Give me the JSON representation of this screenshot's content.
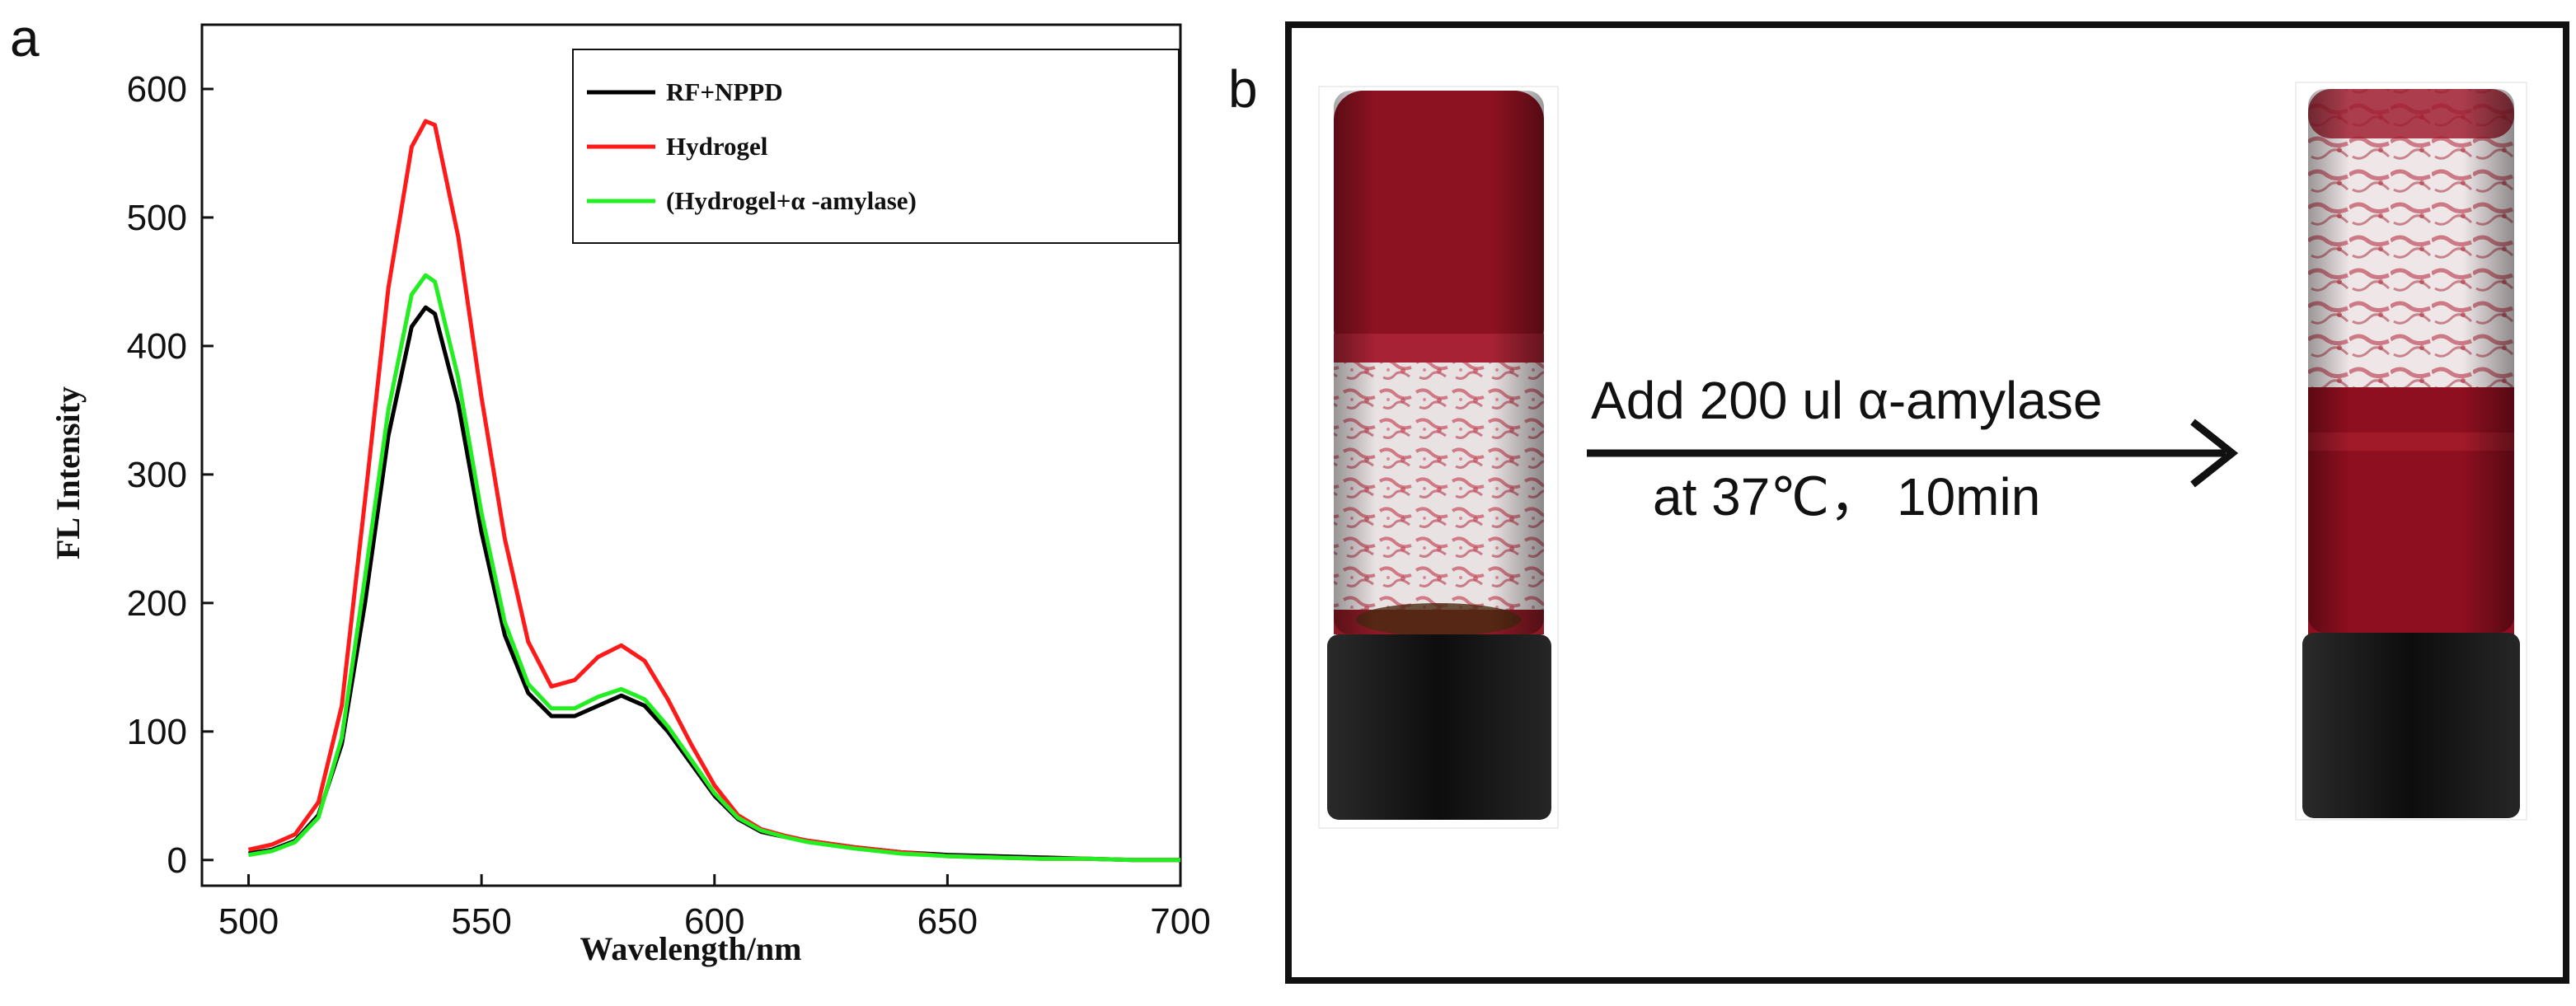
{
  "panel_a": {
    "letter": "a"
  },
  "panel_b": {
    "letter": "b",
    "arrow_line1": "Add 200 ul α-amylase",
    "arrow_line2": "at 37℃， 10min"
  },
  "colors": {
    "rf_nppd": "#000000",
    "hydrogel": "#ff1a1a",
    "hydrogel_amylase": "#22ee22",
    "vial_liquid": "#8e0f1f",
    "vial_cap": "#151515"
  },
  "chart_data": {
    "type": "line",
    "title": "",
    "xlabel": "Wavelength/nm",
    "ylabel": "FL Intensity",
    "xlim": [
      490,
      700
    ],
    "ylim": [
      -20,
      650
    ],
    "xticks": [
      500,
      550,
      600,
      650,
      700
    ],
    "yticks": [
      0,
      100,
      200,
      300,
      400,
      500,
      600
    ],
    "legend_position": "top-right",
    "x": [
      500,
      505,
      510,
      515,
      520,
      525,
      530,
      535,
      538,
      540,
      545,
      550,
      555,
      560,
      565,
      570,
      575,
      580,
      585,
      590,
      595,
      600,
      605,
      610,
      615,
      620,
      630,
      640,
      650,
      660,
      670,
      680,
      690,
      700
    ],
    "series": [
      {
        "name": "RF+NPPD",
        "color": "#000000",
        "values": [
          5,
          8,
          15,
          35,
          90,
          200,
          330,
          415,
          430,
          425,
          355,
          255,
          175,
          130,
          112,
          112,
          120,
          128,
          120,
          100,
          75,
          50,
          32,
          22,
          18,
          15,
          10,
          6,
          4,
          3,
          2,
          1,
          0,
          0
        ]
      },
      {
        "name": "Hydrogel",
        "color": "#ff1a1a",
        "values": [
          8,
          12,
          20,
          45,
          120,
          280,
          445,
          555,
          575,
          572,
          485,
          360,
          250,
          170,
          135,
          140,
          158,
          167,
          155,
          125,
          90,
          58,
          35,
          24,
          19,
          15,
          10,
          6,
          3,
          2,
          1,
          1,
          0,
          0
        ]
      },
      {
        "name": "(Hydrogel+α -amylase)",
        "color": "#22ee22",
        "values": [
          4,
          7,
          14,
          33,
          95,
          220,
          350,
          440,
          455,
          450,
          375,
          270,
          185,
          137,
          118,
          118,
          127,
          133,
          125,
          104,
          78,
          52,
          33,
          23,
          18,
          14,
          9,
          5,
          3,
          2,
          1,
          1,
          0,
          0
        ]
      }
    ]
  }
}
